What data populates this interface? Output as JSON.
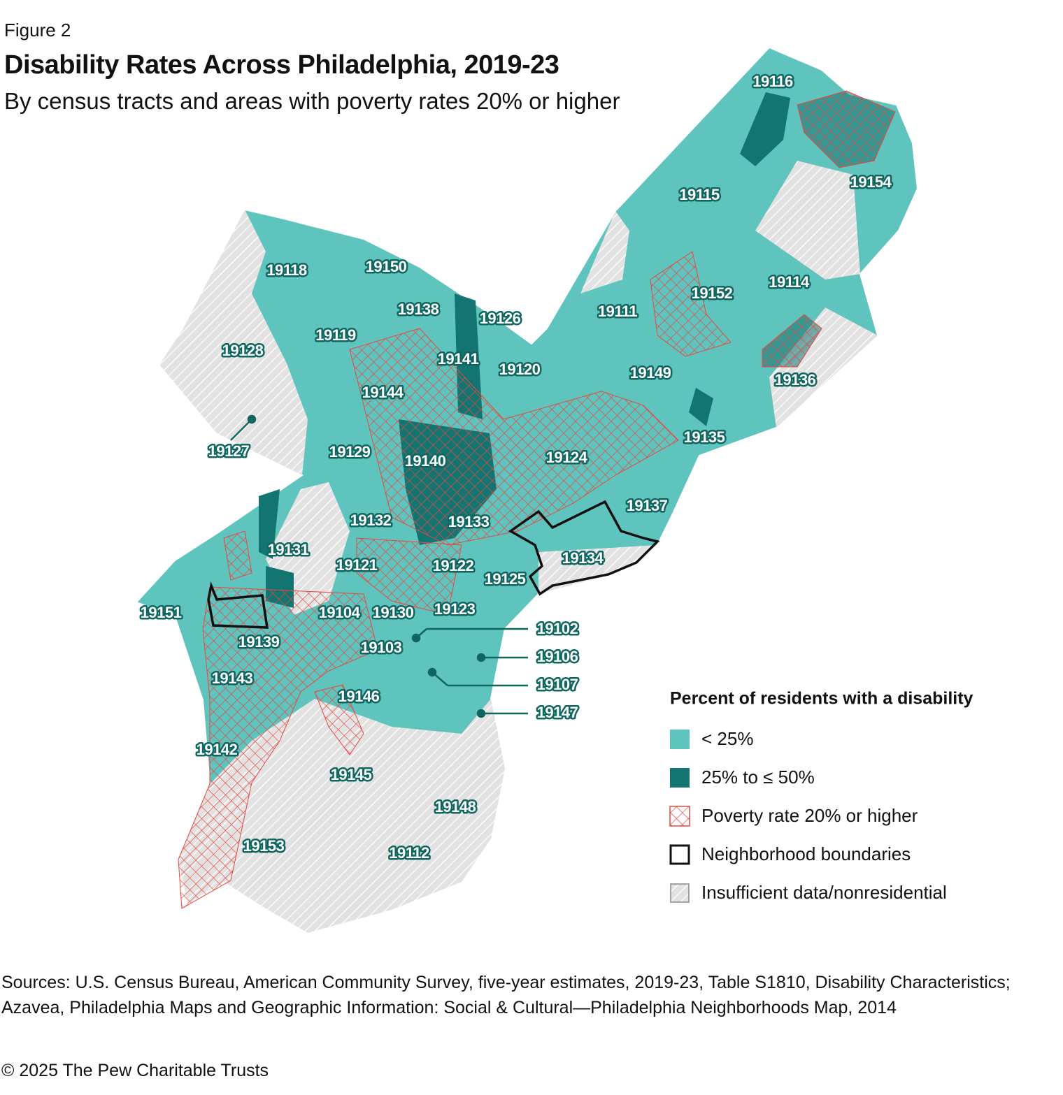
{
  "header": {
    "figure": "Figure 2",
    "title": "Disability Rates Across Philadelphia, 2019-23",
    "subtitle": "By census tracts and areas with poverty rates 20% or higher"
  },
  "map": {
    "zip_labels": [
      "19116",
      "19154",
      "19115",
      "19114",
      "19152",
      "19118",
      "19150",
      "19138",
      "19126",
      "19111",
      "19119",
      "19128",
      "19141",
      "19120",
      "19149",
      "19136",
      "19144",
      "19135",
      "19127",
      "19129",
      "19140",
      "19124",
      "19137",
      "19132",
      "19133",
      "19131",
      "19134",
      "19121",
      "19122",
      "19125",
      "19151",
      "19104",
      "19130",
      "19123",
      "19102",
      "19139",
      "19103",
      "19106",
      "19143",
      "19107",
      "19146",
      "19147",
      "19142",
      "19145",
      "19148",
      "19153",
      "19112"
    ]
  },
  "legend": {
    "title": "Percent of residents with a disability",
    "items": [
      "< 25%",
      "25% to ≤ 50%",
      "Poverty rate 20% or higher",
      "Neighborhood boundaries",
      "Insufficient data/nonresidential"
    ]
  },
  "footer": {
    "sources": "Sources: U.S. Census Bureau, American Community Survey, five-year estimates, 2019-23, Table S1810, Disability Characteristics; Azavea, Philadelphia Maps and Geographic Information: Social & Cultural—Philadelphia Neighborhoods Map, 2014",
    "copyright": "© 2025 The Pew Charitable Trusts"
  }
}
